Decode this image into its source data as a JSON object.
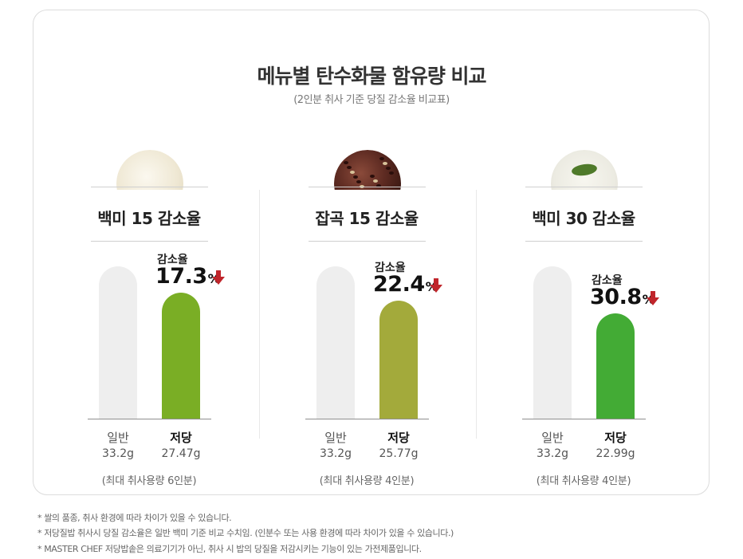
{
  "header": {
    "title": "메뉴별 탄수화물 함유량 비교",
    "subtitle": "(2인분 취사 기준 당질 감소율 비교표)"
  },
  "chart_data": [
    {
      "type": "bar",
      "title": "백미 15 감소율",
      "categories": [
        "일반",
        "저당"
      ],
      "values": [
        33.2,
        27.47
      ],
      "value_labels": [
        "33.2g",
        "27.47g"
      ],
      "unit": "g",
      "reduction_label": "감소율",
      "reduction_value": "17.3",
      "reduction_unit": "%",
      "low_color": "#7aae25",
      "normal_color": "#eeeeee",
      "note": "(최대 취사용량 6인분)",
      "thumb": "white-rice-icon"
    },
    {
      "type": "bar",
      "title": "잡곡 15 감소율",
      "categories": [
        "일반",
        "저당"
      ],
      "values": [
        33.2,
        25.77
      ],
      "value_labels": [
        "33.2g",
        "25.77g"
      ],
      "unit": "g",
      "reduction_label": "감소율",
      "reduction_value": "22.4",
      "reduction_unit": "%",
      "low_color": "#a3aa3b",
      "normal_color": "#eeeeee",
      "note": "(최대 취사용량 4인분)",
      "thumb": "mixed-grain-rice-icon"
    },
    {
      "type": "bar",
      "title": "백미 30 감소율",
      "categories": [
        "일반",
        "저당"
      ],
      "values": [
        33.2,
        22.99
      ],
      "value_labels": [
        "33.2g",
        "22.99g"
      ],
      "unit": "g",
      "reduction_label": "감소율",
      "reduction_value": "30.8",
      "reduction_unit": "%",
      "low_color": "#43ab35",
      "normal_color": "#eeeeee",
      "note": "(최대 취사용량 4인분)",
      "thumb": "rice-with-basil-icon"
    }
  ],
  "footnotes": [
    "* 쌀의 품종, 취사 환경에 따라 차이가 있을 수 있습니다.",
    "* 저당질밥 취사시 당질 감소율은 일반 백미 기준 비교 수치임. (인분수 또는 사용 환경에 따라 차이가 있을 수 있습니다.)",
    "* MASTER CHEF 저당밥솥은 의료기기가 아닌, 취사 시 밥의 당질을 저감시키는 기능이 있는 가전제품입니다."
  ],
  "colors": {
    "arrow": "#c0252b",
    "normal_bar": "#eeeeee"
  }
}
